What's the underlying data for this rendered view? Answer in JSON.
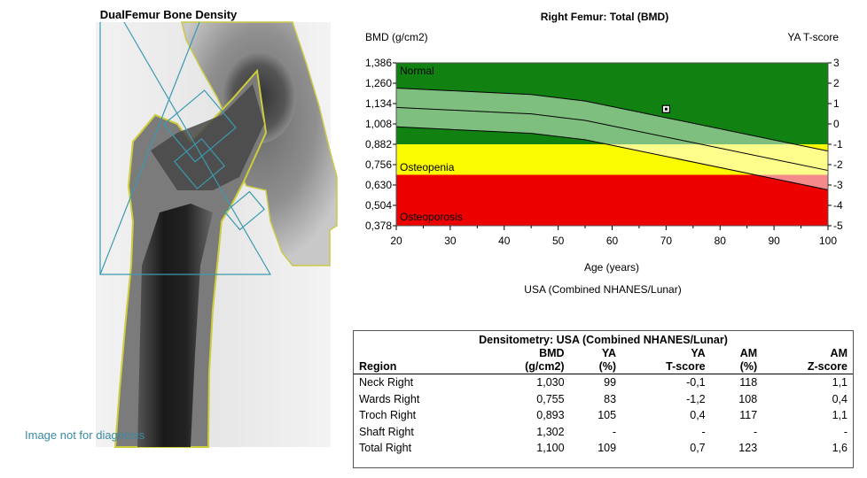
{
  "xray": {
    "title": "DualFemur Bone Density",
    "footer": "Image not for diagnosis"
  },
  "chart_data": {
    "type": "area",
    "title": "Right Femur: Total (BMD)",
    "ylabel": "BMD (g/cm2)",
    "y2label": "YA T-score",
    "xlabel": "Age (years)",
    "subtitle": "USA (Combined NHANES/Lunar)",
    "xlim": [
      20,
      100
    ],
    "ylim": [
      0.378,
      1.386
    ],
    "x_ticks": [
      "20",
      "30",
      "40",
      "50",
      "60",
      "70",
      "80",
      "90",
      "100"
    ],
    "y_ticks": [
      "0,378",
      "0,504",
      "0,630",
      "0,756",
      "0,882",
      "1,008",
      "1,134",
      "1,260",
      "1,386"
    ],
    "y2_ticks": [
      "-5",
      "-4",
      "-3",
      "-2",
      "-1",
      "0",
      "1",
      "2",
      "3"
    ],
    "zones": [
      {
        "label": "Normal",
        "from_t": -1,
        "to_t": 3,
        "color": "#118211"
      },
      {
        "label": "Osteopenia",
        "from_t": -2.5,
        "to_t": -1,
        "color": "#fafa00"
      },
      {
        "label": "Osteoporosis",
        "from_t": -5,
        "to_t": -2.5,
        "color": "#ed0000"
      }
    ],
    "reference_curves": [
      {
        "x": [
          20,
          45,
          55,
          100
        ],
        "y": [
          1.23,
          1.19,
          1.15,
          0.84
        ]
      },
      {
        "x": [
          20,
          45,
          55,
          100
        ],
        "y": [
          1.11,
          1.07,
          1.03,
          0.72
        ]
      },
      {
        "x": [
          20,
          45,
          55,
          100
        ],
        "y": [
          0.99,
          0.95,
          0.91,
          0.6
        ]
      }
    ],
    "band_colors": {
      "on_normal": "#7ebe7e",
      "on_osteopenia": "#fdfd8c",
      "on_osteoporosis": "#f58a8a"
    },
    "patient_point": {
      "x": 70,
      "y": 1.1
    }
  },
  "table": {
    "caption": "Densitometry: USA (Combined NHANES/Lunar)",
    "header_row1": [
      "",
      "BMD",
      "YA",
      "YA",
      "AM",
      "AM"
    ],
    "header_row2": [
      "Region",
      "(g/cm2)",
      "(%)",
      "T-score",
      "(%)",
      "Z-score"
    ],
    "rows": [
      [
        "Neck Right",
        "1,030",
        "99",
        "-0,1",
        "118",
        "1,1"
      ],
      [
        "Wards Right",
        "0,755",
        "83",
        "-1,2",
        "108",
        "0,4"
      ],
      [
        "Troch Right",
        "0,893",
        "105",
        "0,4",
        "117",
        "1,1"
      ],
      [
        "Shaft Right",
        "1,302",
        "-",
        "-",
        "-",
        "-"
      ],
      [
        "Total Right",
        "1,100",
        "109",
        "0,7",
        "123",
        "1,6"
      ]
    ]
  }
}
